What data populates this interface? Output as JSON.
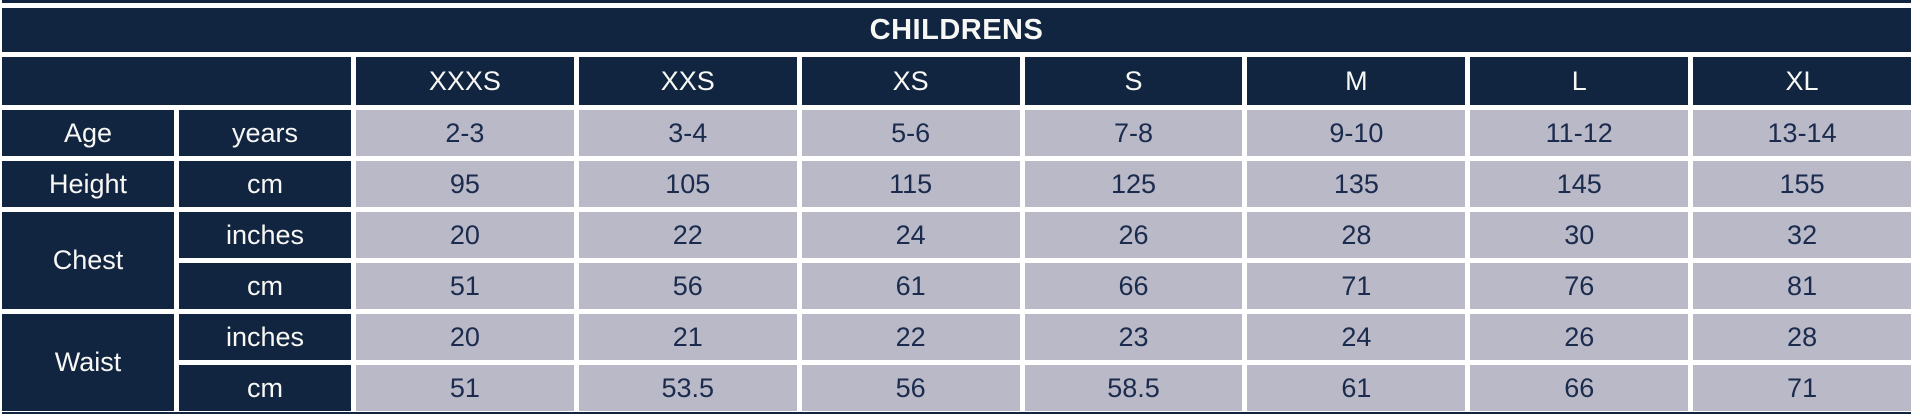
{
  "chart_data": {
    "type": "table",
    "title": "CHILDRENS",
    "columns": [
      "XXXS",
      "XXS",
      "XS",
      "S",
      "M",
      "L",
      "XL"
    ],
    "measurements": [
      {
        "label": "Age",
        "rows": [
          {
            "unit": "years",
            "values": [
              "2-3",
              "3-4",
              "5-6",
              "7-8",
              "9-10",
              "11-12",
              "13-14"
            ]
          }
        ]
      },
      {
        "label": "Height",
        "rows": [
          {
            "unit": "cm",
            "values": [
              "95",
              "105",
              "115",
              "125",
              "135",
              "145",
              "155"
            ]
          }
        ]
      },
      {
        "label": "Chest",
        "rows": [
          {
            "unit": "inches",
            "values": [
              "20",
              "22",
              "24",
              "26",
              "28",
              "30",
              "32"
            ]
          },
          {
            "unit": "cm",
            "values": [
              "51",
              "56",
              "61",
              "66",
              "71",
              "76",
              "81"
            ]
          }
        ]
      },
      {
        "label": "Waist",
        "rows": [
          {
            "unit": "inches",
            "values": [
              "20",
              "21",
              "22",
              "23",
              "24",
              "26",
              "28"
            ]
          },
          {
            "unit": "cm",
            "values": [
              "51",
              "53.5",
              "56",
              "58.5",
              "61",
              "66",
              "71"
            ]
          }
        ]
      }
    ],
    "colors": {
      "navy": "#112440",
      "cell_background": "#b9b9c8",
      "cell_text": "#1b2b4d",
      "gridline": "#ffffff"
    }
  }
}
